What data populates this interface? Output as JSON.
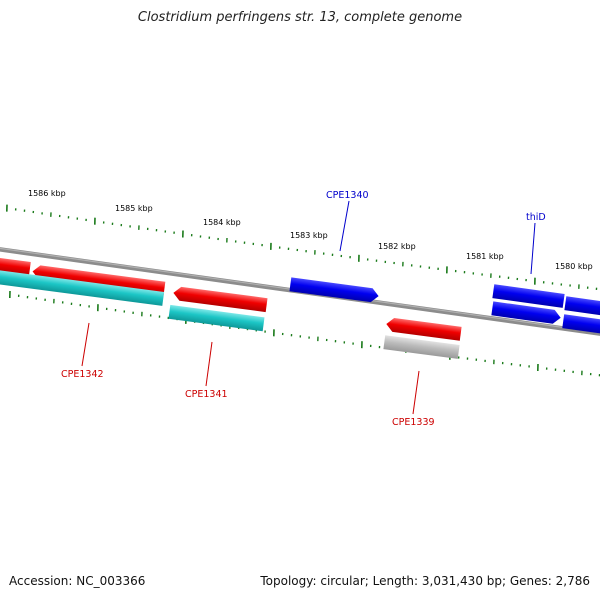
{
  "title": "Clostridium perfringens str. 13, complete genome",
  "footer": {
    "accession": "Accession: NC_003366",
    "summary": "Topology: circular; Length: 3,031,430 bp; Genes: 2,786"
  },
  "colors": {
    "forward_cds": "#0000ee",
    "reverse_cds": "#ee0000",
    "rna": "#18c8c8",
    "pseudo": "#b4b4b4",
    "axis": "#808080",
    "ticks": "#1a7a1a"
  },
  "scale": {
    "unit": "kbp",
    "labels": [
      "1586 kbp",
      "1585 kbp",
      "1584 kbp",
      "1583 kbp",
      "1582 kbp",
      "1581 kbp",
      "1580 kbp"
    ]
  },
  "genes": [
    {
      "label": "CPE1340",
      "strand": "forward",
      "color": "#0000cc"
    },
    {
      "label": "thiD",
      "strand": "forward",
      "color": "#0000cc"
    },
    {
      "label": "CPE1342",
      "strand": "reverse",
      "color": "#cc0000"
    },
    {
      "label": "CPE1341",
      "strand": "reverse",
      "color": "#cc0000"
    },
    {
      "label": "CPE1339",
      "strand": "reverse",
      "color": "#cc0000"
    }
  ]
}
